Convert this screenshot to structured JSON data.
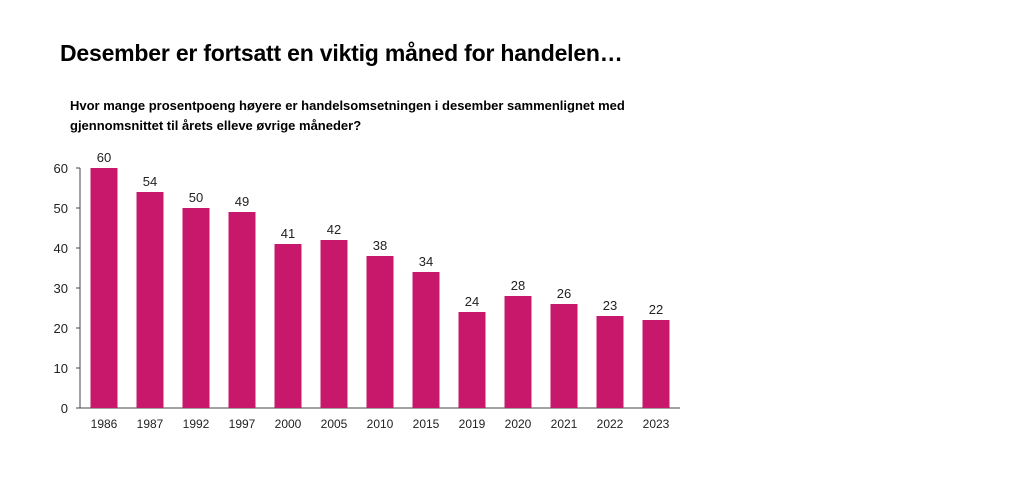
{
  "chart_data": {
    "type": "bar",
    "title": "Desember er fortsatt en viktig måned for handelen…",
    "subtitle": "Hvor mange prosentpoeng høyere er handelsomsetningen i desember sammenlignet med gjennomsnittet til årets elleve øvrige måneder?",
    "xlabel": "",
    "ylabel": "",
    "categories": [
      "1986",
      "1987",
      "1992",
      "1997",
      "2000",
      "2005",
      "2010",
      "2015",
      "2019",
      "2020",
      "2021",
      "2022",
      "2023"
    ],
    "values": [
      60,
      54,
      50,
      49,
      41,
      42,
      38,
      34,
      24,
      28,
      26,
      23,
      22
    ],
    "ylim": [
      0,
      60
    ],
    "yticks": [
      0,
      10,
      20,
      30,
      40,
      50,
      60
    ],
    "grid": false,
    "data_labels": true,
    "bar_color": "#C8186C"
  }
}
